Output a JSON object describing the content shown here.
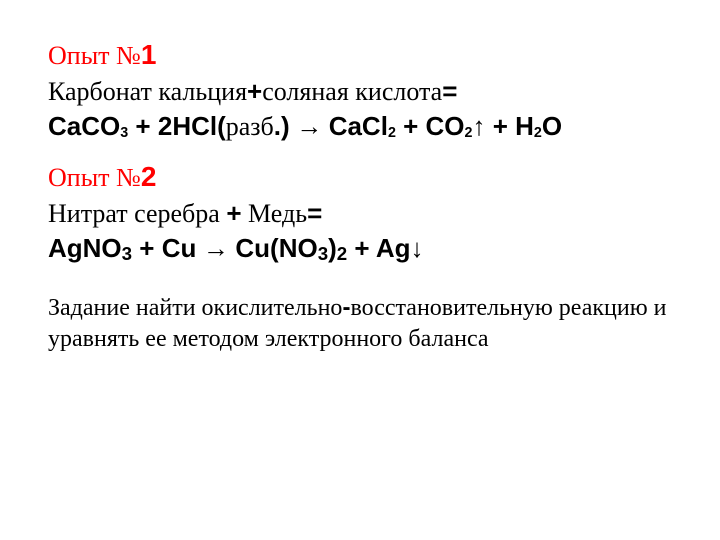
{
  "colors": {
    "heading": "#ff0000",
    "text": "#000000",
    "background": "#ffffff"
  },
  "typography": {
    "serif_family": "Times New Roman",
    "sans_family": "Arial",
    "base_fontsize_pt": 20,
    "task_fontsize_pt": 18
  },
  "exp1": {
    "title_pre": "Опыт №",
    "title_num": "1",
    "word_line": {
      "left": "Карбонат кальция",
      "plus": "+",
      "right": "соляная кислота",
      "eq": "="
    },
    "equation": {
      "r1_base": "CaCO",
      "r1_sub": "3",
      "plus1": " + ",
      "coef2": "2",
      "r2_base": "HCl(",
      "r2_tail_serif": "разб",
      "r2_close": ".)",
      "arrow": " → ",
      "p1_base": "CaCl",
      "p1_sub": "2",
      "plus2": " + ",
      "p2_base": "CO",
      "p2_sub": "2",
      "p2_arrow": "↑",
      "plus3": " + ",
      "p3_a": "H",
      "p3_sub": "2",
      "p3_b": "O"
    }
  },
  "exp2": {
    "title_pre": "Опыт №",
    "title_num": "2",
    "word_line": {
      "left": "Нитрат серебра ",
      "plus": "+",
      "right": " Медь",
      "eq": "="
    },
    "equation": {
      "r1_base": "AgNO",
      "r1_sub": "3",
      "plus1": " + ",
      "r2": "Cu",
      "arrow": " → ",
      "p1_a": "Cu(NO",
      "p1_sub1": "3",
      "p1_b": ")",
      "p1_sub2": "2",
      "plus2": " + ",
      "p2": "Ag",
      "p2_arrow": "↓"
    }
  },
  "task": {
    "line1_a": "Задание найти окислительно",
    "dash": "-",
    "line1_b": "восстановительную реакцию и",
    "line2": "уравнять ее методом электронного баланса"
  }
}
